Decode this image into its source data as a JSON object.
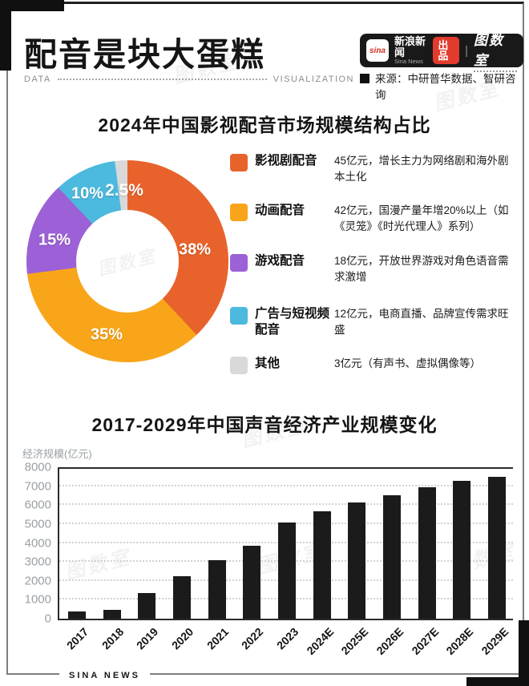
{
  "page": {
    "title": "配音是块大蛋糕",
    "subtitle_left": "DATA",
    "subtitle_right": "VISUALIZATION",
    "source": "来源：中研普华数据、智研咨询",
    "footer": "SINA NEWS",
    "watermark": "图数室"
  },
  "badge": {
    "sina_logo": "sina",
    "brand": "新浪新闻",
    "brand_en": "Sina News",
    "produce": "出品",
    "divider": "|",
    "studio": "图数室"
  },
  "chart_data": [
    {
      "type": "pie",
      "donut": true,
      "title": "2024年中国影视配音市场规模结构占比",
      "slices": [
        {
          "label": "影视剧配音",
          "pct": 38,
          "pct_label": "38%",
          "color": "#E8632C",
          "desc": "45亿元，增长主力为网络剧和海外剧本土化"
        },
        {
          "label": "动画配音",
          "pct": 35,
          "pct_label": "35%",
          "color": "#F9A51A",
          "desc": "42亿元，国漫产量年增20%以上（如《灵笼》《时光代理人》系列）"
        },
        {
          "label": "游戏配音",
          "pct": 15,
          "pct_label": "15%",
          "color": "#9C61D6",
          "desc": "18亿元，开放世界游戏对角色语音需求激增"
        },
        {
          "label": "广告与短视频配音",
          "pct": 10,
          "pct_label": "10%",
          "color": "#4CB9DE",
          "desc": "12亿元，电商直播、品牌宣传需求旺盛"
        },
        {
          "label": "其他",
          "pct": 2.5,
          "pct_label": "2.5%",
          "color": "#D9D9D9",
          "desc": "3亿元（有声书、虚拟偶像等）"
        }
      ]
    },
    {
      "type": "bar",
      "title": "2017-2029年中国声音经济产业规模变化",
      "ylabel": "经济规模(亿元)",
      "categories": [
        "2017",
        "2018",
        "2019",
        "2020",
        "2021",
        "2022",
        "2023",
        "2024E",
        "2025E",
        "2026E",
        "2027E",
        "2028E",
        "2029E"
      ],
      "values": [
        380,
        480,
        1360,
        2250,
        3110,
        3860,
        5100,
        5690,
        6140,
        6540,
        6930,
        7260,
        7510
      ],
      "ylim": [
        0,
        8000
      ],
      "ytick_step": 1000,
      "bar_color": "#1B1B1B",
      "grid": "dotted-horizontal",
      "legend": "none"
    }
  ]
}
